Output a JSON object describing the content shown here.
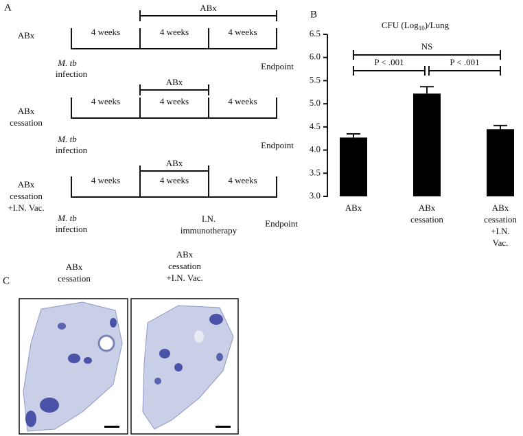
{
  "panel_a": {
    "label": "A",
    "rows": [
      {
        "label": [
          "ABx"
        ],
        "abx": "ABx",
        "weeks": [
          "4 weeks",
          "4 weeks",
          "4 weeks"
        ],
        "start": [
          "M. tb",
          "infection"
        ],
        "end": "Endpoint"
      },
      {
        "label": [
          "ABx",
          "cessation"
        ],
        "abx": "ABx",
        "weeks": [
          "4 weeks",
          "4 weeks",
          "4 weeks"
        ],
        "start": [
          "M. tb",
          "infection"
        ],
        "end": "Endpoint"
      },
      {
        "label": [
          "ABx",
          "cessation",
          "+I.N. Vac."
        ],
        "abx": "ABx",
        "weeks": [
          "4 weeks",
          "4 weeks",
          "4 weeks"
        ],
        "start": [
          "M. tb",
          "infection"
        ],
        "mid": [
          "I.N.",
          "immunotherapy"
        ],
        "end": "Endpoint"
      }
    ]
  },
  "chart_data": {
    "panel": "B",
    "type": "bar",
    "title": [
      "CFU (Log",
      "10",
      ")/Lung"
    ],
    "categories": [
      "ABx",
      "ABx\ncessation",
      "ABx\ncessation\n+I.N. Vac."
    ],
    "values": [
      4.27,
      5.22,
      4.45
    ],
    "errors": [
      0.08,
      0.15,
      0.08
    ],
    "color": "#000000",
    "ylim": [
      3.0,
      6.5
    ],
    "yticks": [
      {
        "value": 3.0,
        "label": "3.0"
      },
      3.5,
      {
        "value": 4.0,
        "label": "4.0"
      },
      4.5,
      {
        "value": 5.0,
        "label": "5.0"
      },
      5.5,
      {
        "value": 6.0,
        "label": "6.0"
      },
      6.5
    ],
    "annotations": [
      "NS",
      "P < .001",
      "P < .001"
    ]
  },
  "panel_c": {
    "label": "C",
    "images": [
      {
        "title": "ABx\ncessation"
      },
      {
        "title": "ABx\ncessation\n+I.N. Vac."
      }
    ]
  }
}
